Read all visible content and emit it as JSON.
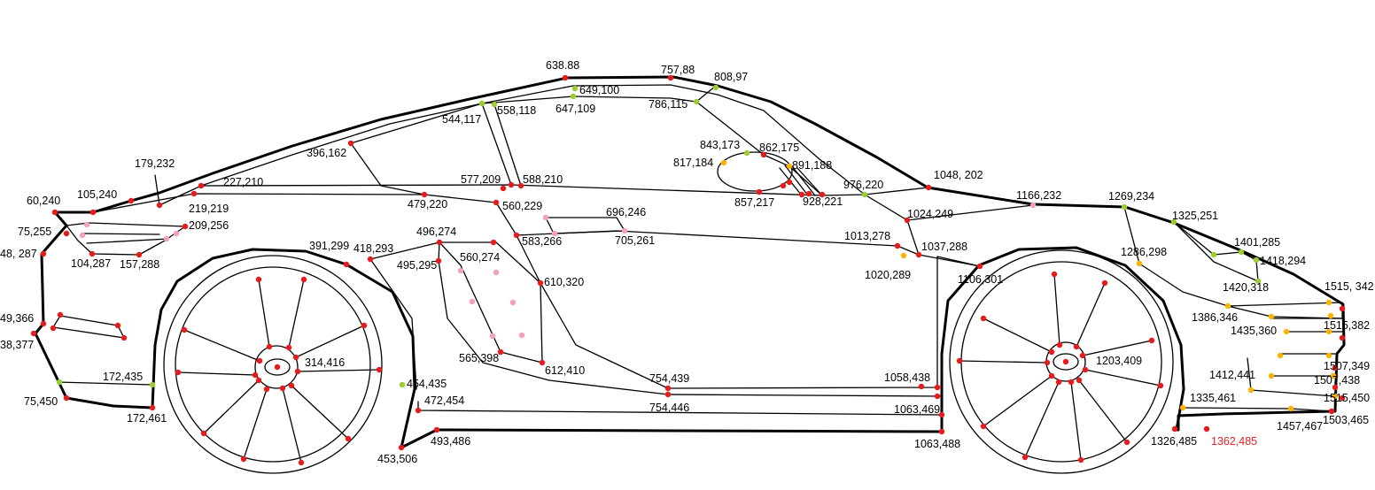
{
  "figure": {
    "colors": {
      "outline": "#000000",
      "red": "#e61c1c",
      "green": "#9acd32",
      "orange": "#ffb300",
      "pink": "#f5a0b8",
      "label": "#000000",
      "label_highlight": "#e52222"
    },
    "labels": [
      "638.88",
      "757,88",
      "808,97",
      "649,100",
      "647,109",
      "786,115",
      "544,117",
      "558,118",
      "396,162",
      "843,173",
      "862,175",
      "817,184",
      "891,188",
      "179,232",
      "227,210",
      "577,209",
      "588,210",
      "976,220",
      "1048, 202",
      "1166,232",
      "1269,234",
      "60,240",
      "105,240",
      "219,219",
      "479,220",
      "857,217",
      "928,221",
      "560,229",
      "696,246",
      "1024,249",
      "1325,251",
      "75,255",
      "209,256",
      "496,274",
      "583,266",
      "705,261",
      "1013,278",
      "48, 287",
      "104,287",
      "157,288",
      "391,299",
      "418,293",
      "495,295",
      "560,274",
      "1037,288",
      "1020,289",
      "1286,298",
      "1401,285",
      "1418,294",
      "1106,301",
      "610,320",
      "1420,318",
      "1515, 342",
      "49,366",
      "1386,346",
      "1515,382",
      "1435,360",
      "38,377",
      "314,416",
      "565,398",
      "612,410",
      "1203,409",
      "1507,349",
      "172,435",
      "454,435",
      "754,439",
      "1058,438",
      "1412,441",
      "1507,438",
      "75,450",
      "472,454",
      "754,446",
      "1063,469",
      "1335,461",
      "1515,450",
      "172,461",
      "1457,467",
      "1503,465",
      "453,506",
      "493,486",
      "1063,488",
      "1326,485",
      "1362,485"
    ]
  }
}
